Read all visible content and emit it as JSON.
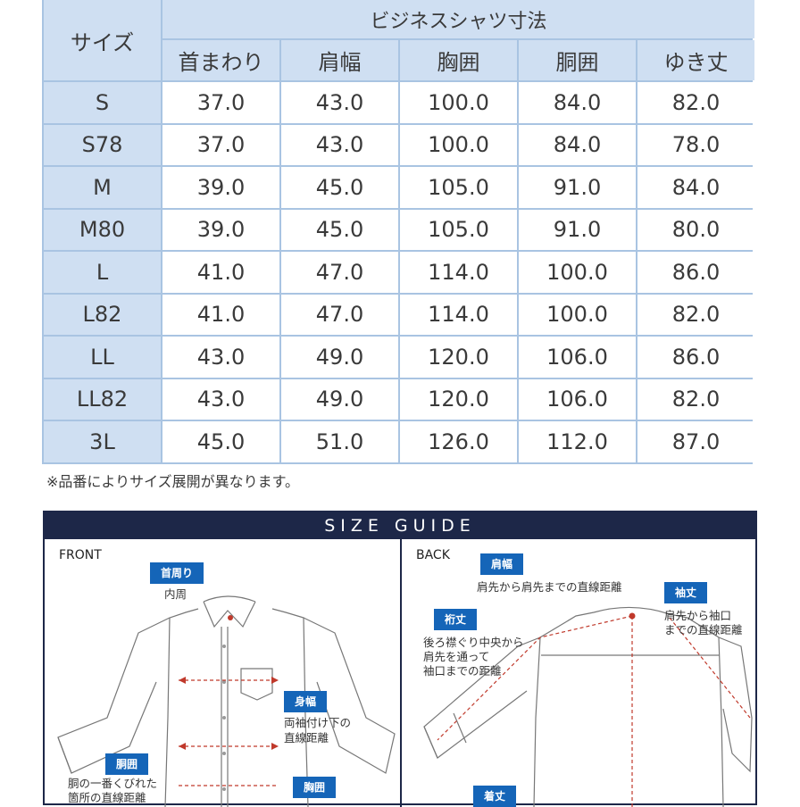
{
  "table": {
    "size_header": "サイズ",
    "group_header": "ビジネスシャツ寸法",
    "columns": [
      "首まわり",
      "肩幅",
      "胸囲",
      "胴囲",
      "ゆき丈"
    ],
    "rows": [
      {
        "size": "S",
        "values": [
          "37.0",
          "43.0",
          "100.0",
          "84.0",
          "82.0"
        ]
      },
      {
        "size": "S78",
        "values": [
          "37.0",
          "43.0",
          "100.0",
          "84.0",
          "78.0"
        ]
      },
      {
        "size": "M",
        "values": [
          "39.0",
          "45.0",
          "105.0",
          "91.0",
          "84.0"
        ]
      },
      {
        "size": "M80",
        "values": [
          "39.0",
          "45.0",
          "105.0",
          "91.0",
          "80.0"
        ]
      },
      {
        "size": "L",
        "values": [
          "41.0",
          "47.0",
          "114.0",
          "100.0",
          "86.0"
        ]
      },
      {
        "size": "L82",
        "values": [
          "41.0",
          "47.0",
          "114.0",
          "100.0",
          "82.0"
        ]
      },
      {
        "size": "LL",
        "values": [
          "43.0",
          "49.0",
          "120.0",
          "106.0",
          "86.0"
        ]
      },
      {
        "size": "LL82",
        "values": [
          "43.0",
          "49.0",
          "120.0",
          "106.0",
          "82.0"
        ]
      },
      {
        "size": "3L",
        "values": [
          "45.0",
          "51.0",
          "126.0",
          "112.0",
          "87.0"
        ]
      }
    ]
  },
  "note": "※品番によりサイズ展開が異なります。",
  "guide": {
    "title": "SIZE GUIDE",
    "front": {
      "label": "FRONT",
      "neck_tag": "首周り",
      "neck_desc": "内周",
      "chest_tag": "身幅",
      "chest_desc": [
        "両袖付け下の",
        "直線距離"
      ],
      "waist_tag": "胴囲",
      "waist_desc": [
        "胴の一番くびれた",
        "箇所の直線距離"
      ],
      "bust_tag": "胸囲"
    },
    "back": {
      "label": "BACK",
      "shoulder_tag": "肩幅",
      "shoulder_desc": "肩先から肩先までの直線距離",
      "sleeve_tag": "袖丈",
      "sleeve_desc": [
        "肩先から袖口",
        "までの直線距離"
      ],
      "yuki_tag": "裄丈",
      "yuki_desc": [
        "後ろ襟ぐり中央から",
        "肩先を通って",
        "袖口までの距離"
      ],
      "length_tag": "着丈"
    }
  },
  "colors": {
    "header_bg": "#cfdff2",
    "grid_line": "#a9c4e2",
    "guide_navy": "#1d2748",
    "tag_blue": "#1565b8",
    "measure_red": "#c0392b"
  }
}
